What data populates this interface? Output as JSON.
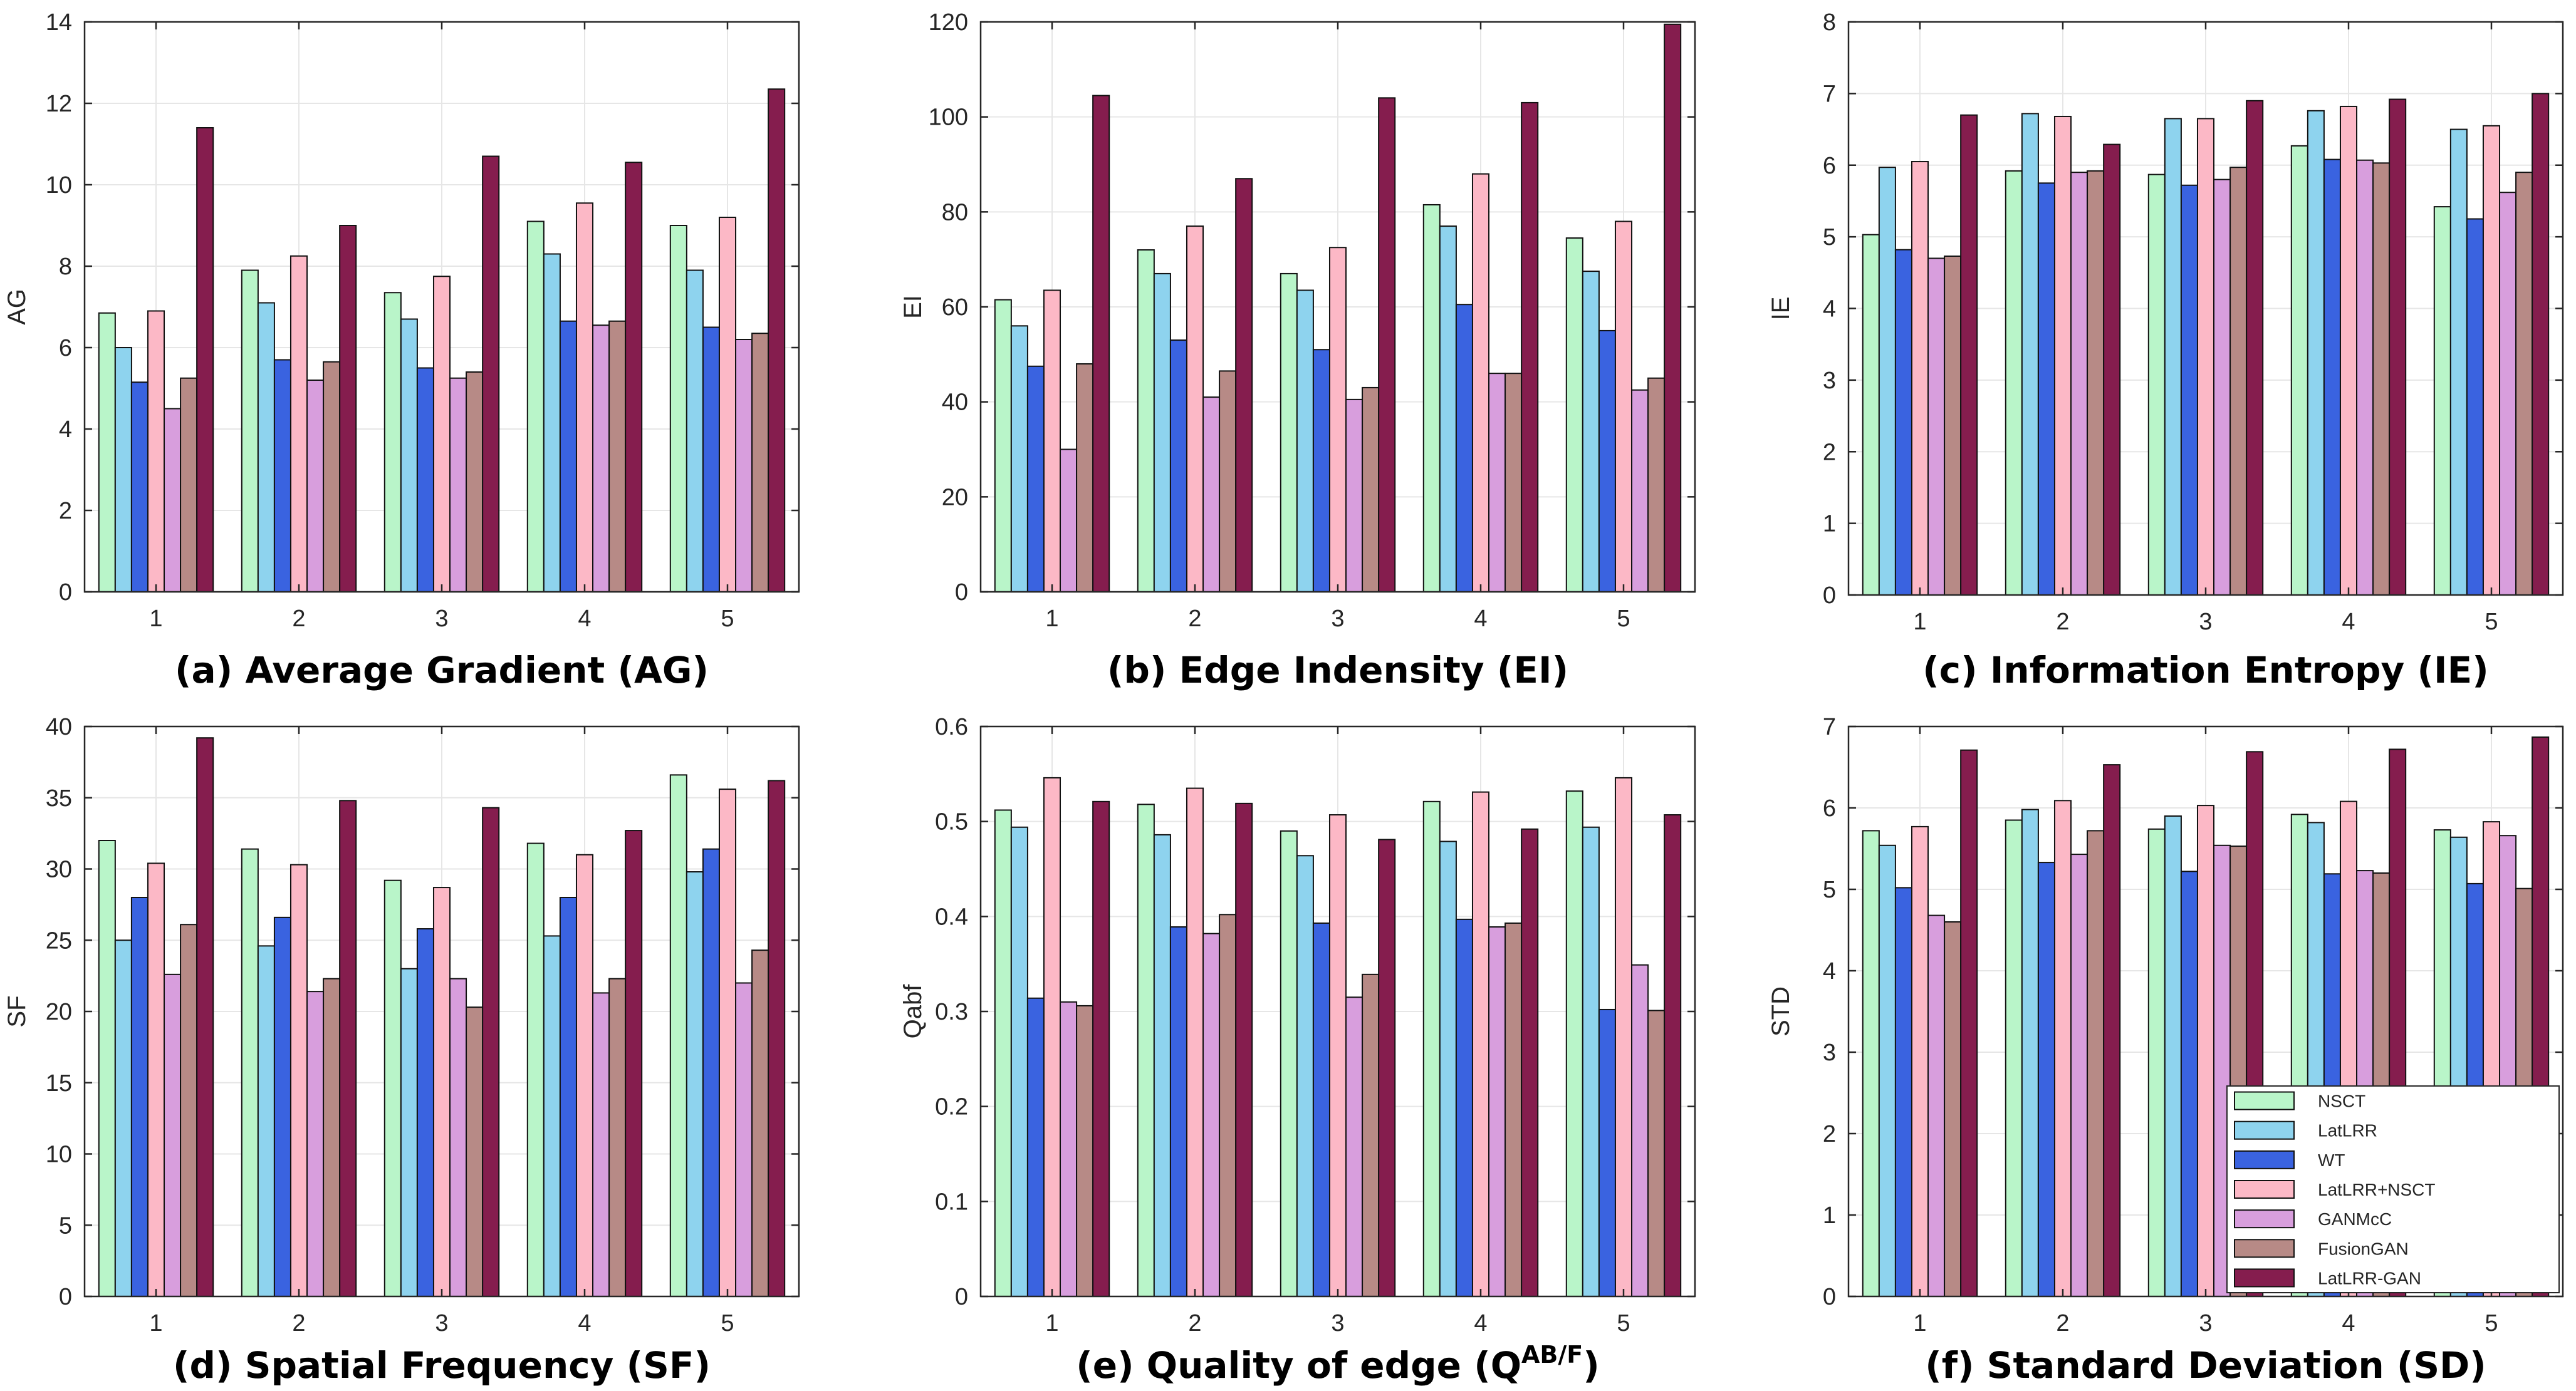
{
  "colors": {
    "NSCT": "#b9f5c9",
    "LatLRR": "#8ed3ee",
    "WT": "#3a63e0",
    "LatLRR+NSCT": "#fcb8c6",
    "GANMcC": "#d89edd",
    "FusionGAN": "#b78a86",
    "LatLRR-GAN": "#851d4e"
  },
  "legend": [
    "NSCT",
    "LatLRR",
    "WT",
    "LatLRR+NSCT",
    "GANMcC",
    "FusionGAN",
    "LatLRR-GAN"
  ],
  "chart_data": [
    {
      "type": "bar",
      "id": "ag",
      "caption": "(a) Average Gradient (AG)",
      "ylabel": "AG",
      "ylim": [
        0,
        14
      ],
      "yticks": [
        0,
        2,
        4,
        6,
        8,
        10,
        12,
        14
      ],
      "categories": [
        "1",
        "2",
        "3",
        "4",
        "5"
      ],
      "series": [
        {
          "name": "NSCT",
          "values": [
            6.85,
            7.9,
            7.35,
            9.1,
            9.0
          ]
        },
        {
          "name": "LatLRR",
          "values": [
            6.0,
            7.1,
            6.7,
            8.3,
            7.9
          ]
        },
        {
          "name": "WT",
          "values": [
            5.15,
            5.7,
            5.5,
            6.65,
            6.5
          ]
        },
        {
          "name": "LatLRR+NSCT",
          "values": [
            6.9,
            8.25,
            7.75,
            9.55,
            9.2
          ]
        },
        {
          "name": "GANMcC",
          "values": [
            4.5,
            5.2,
            5.25,
            6.55,
            6.2
          ]
        },
        {
          "name": "FusionGAN",
          "values": [
            5.25,
            5.65,
            5.4,
            6.65,
            6.35
          ]
        },
        {
          "name": "LatLRR-GAN",
          "values": [
            11.4,
            9.0,
            10.7,
            10.55,
            12.35
          ]
        }
      ]
    },
    {
      "type": "bar",
      "id": "ei",
      "caption": "(b) Edge Indensity (EI)",
      "ylabel": "EI",
      "ylim": [
        0,
        120
      ],
      "yticks": [
        0,
        20,
        40,
        60,
        80,
        100,
        120
      ],
      "categories": [
        "1",
        "2",
        "3",
        "4",
        "5"
      ],
      "series": [
        {
          "name": "NSCT",
          "values": [
            61.5,
            72.0,
            67.0,
            81.5,
            74.5
          ]
        },
        {
          "name": "LatLRR",
          "values": [
            56.0,
            67.0,
            63.5,
            77.0,
            67.5
          ]
        },
        {
          "name": "WT",
          "values": [
            47.5,
            53.0,
            51.0,
            60.5,
            55.0
          ]
        },
        {
          "name": "LatLRR+NSCT",
          "values": [
            63.5,
            77.0,
            72.5,
            88.0,
            78.0
          ]
        },
        {
          "name": "GANMcC",
          "values": [
            30.0,
            41.0,
            40.5,
            46.0,
            42.5
          ]
        },
        {
          "name": "FusionGAN",
          "values": [
            48.0,
            46.5,
            43.0,
            46.0,
            45.0
          ]
        },
        {
          "name": "LatLRR-GAN",
          "values": [
            104.5,
            87.0,
            104.0,
            103.0,
            119.5
          ]
        }
      ]
    },
    {
      "type": "bar",
      "id": "ie",
      "caption": "(c) Information Entropy (IE)",
      "ylabel": "IE",
      "ylim": [
        0,
        8
      ],
      "yticks": [
        0,
        1,
        2,
        3,
        4,
        5,
        6,
        7,
        8
      ],
      "categories": [
        "1",
        "2",
        "3",
        "4",
        "5"
      ],
      "series": [
        {
          "name": "NSCT",
          "values": [
            5.03,
            5.92,
            5.87,
            6.27,
            5.42
          ]
        },
        {
          "name": "LatLRR",
          "values": [
            5.97,
            6.72,
            6.65,
            6.76,
            6.5
          ]
        },
        {
          "name": "WT",
          "values": [
            4.82,
            5.75,
            5.72,
            6.08,
            5.25
          ]
        },
        {
          "name": "LatLRR+NSCT",
          "values": [
            6.05,
            6.68,
            6.65,
            6.82,
            6.55
          ]
        },
        {
          "name": "GANMcC",
          "values": [
            4.7,
            5.9,
            5.8,
            6.07,
            5.62
          ]
        },
        {
          "name": "FusionGAN",
          "values": [
            4.73,
            5.92,
            5.97,
            6.03,
            5.9
          ]
        },
        {
          "name": "LatLRR-GAN",
          "values": [
            6.7,
            6.29,
            6.9,
            6.92,
            7.0
          ]
        }
      ]
    },
    {
      "type": "bar",
      "id": "sf",
      "caption": "(d) Spatial Frequency (SF)",
      "ylabel": "SF",
      "ylim": [
        0,
        40
      ],
      "yticks": [
        0,
        5,
        10,
        15,
        20,
        25,
        30,
        35,
        40
      ],
      "categories": [
        "1",
        "2",
        "3",
        "4",
        "5"
      ],
      "series": [
        {
          "name": "NSCT",
          "values": [
            32.0,
            31.4,
            29.2,
            31.8,
            36.6
          ]
        },
        {
          "name": "LatLRR",
          "values": [
            25.0,
            24.6,
            23.0,
            25.3,
            29.8
          ]
        },
        {
          "name": "WT",
          "values": [
            28.0,
            26.6,
            25.8,
            28.0,
            31.4
          ]
        },
        {
          "name": "LatLRR+NSCT",
          "values": [
            30.4,
            30.3,
            28.7,
            31.0,
            35.6
          ]
        },
        {
          "name": "GANMcC",
          "values": [
            22.6,
            21.4,
            22.3,
            21.3,
            22.0
          ]
        },
        {
          "name": "FusionGAN",
          "values": [
            26.1,
            22.3,
            20.3,
            22.3,
            24.3
          ]
        },
        {
          "name": "LatLRR-GAN",
          "values": [
            39.2,
            34.8,
            34.3,
            32.7,
            36.2
          ]
        }
      ]
    },
    {
      "type": "bar",
      "id": "qabf",
      "caption": "(e) Quality of edge (Q",
      "caption_sup": "AB/F",
      "caption_end": ")",
      "ylabel": "Qabf",
      "ylim": [
        0,
        0.6
      ],
      "yticks": [
        0,
        0.1,
        0.2,
        0.3,
        0.4,
        0.5,
        0.6
      ],
      "categories": [
        "1",
        "2",
        "3",
        "4",
        "5"
      ],
      "series": [
        {
          "name": "NSCT",
          "values": [
            0.512,
            0.518,
            0.49,
            0.521,
            0.532
          ]
        },
        {
          "name": "LatLRR",
          "values": [
            0.494,
            0.486,
            0.464,
            0.479,
            0.494
          ]
        },
        {
          "name": "WT",
          "values": [
            0.314,
            0.389,
            0.393,
            0.397,
            0.302
          ]
        },
        {
          "name": "LatLRR+NSCT",
          "values": [
            0.546,
            0.535,
            0.507,
            0.531,
            0.546
          ]
        },
        {
          "name": "GANMcC",
          "values": [
            0.31,
            0.382,
            0.315,
            0.389,
            0.349
          ]
        },
        {
          "name": "FusionGAN",
          "values": [
            0.306,
            0.402,
            0.339,
            0.393,
            0.301
          ]
        },
        {
          "name": "LatLRR-GAN",
          "values": [
            0.521,
            0.519,
            0.481,
            0.492,
            0.507
          ]
        }
      ]
    },
    {
      "type": "bar",
      "id": "std",
      "caption": "(f) Standard Deviation (SD)",
      "ylabel": "STD",
      "ylim": [
        0,
        7
      ],
      "yticks": [
        0,
        1,
        2,
        3,
        4,
        5,
        6,
        7
      ],
      "categories": [
        "1",
        "2",
        "3",
        "4",
        "5"
      ],
      "legend_location": "bottom-right",
      "series": [
        {
          "name": "NSCT",
          "values": [
            5.72,
            5.85,
            5.74,
            5.92,
            5.73
          ]
        },
        {
          "name": "LatLRR",
          "values": [
            5.54,
            5.98,
            5.9,
            5.82,
            5.64
          ]
        },
        {
          "name": "WT",
          "values": [
            5.02,
            5.33,
            5.22,
            5.19,
            5.07
          ]
        },
        {
          "name": "LatLRR+NSCT",
          "values": [
            5.77,
            6.09,
            6.03,
            6.08,
            5.83
          ]
        },
        {
          "name": "GANMcC",
          "values": [
            4.68,
            5.43,
            5.54,
            5.23,
            5.66
          ]
        },
        {
          "name": "FusionGAN",
          "values": [
            4.6,
            5.72,
            5.53,
            5.2,
            5.01
          ]
        },
        {
          "name": "LatLRR-GAN",
          "values": [
            6.71,
            6.53,
            6.69,
            6.72,
            6.87
          ]
        }
      ]
    }
  ]
}
